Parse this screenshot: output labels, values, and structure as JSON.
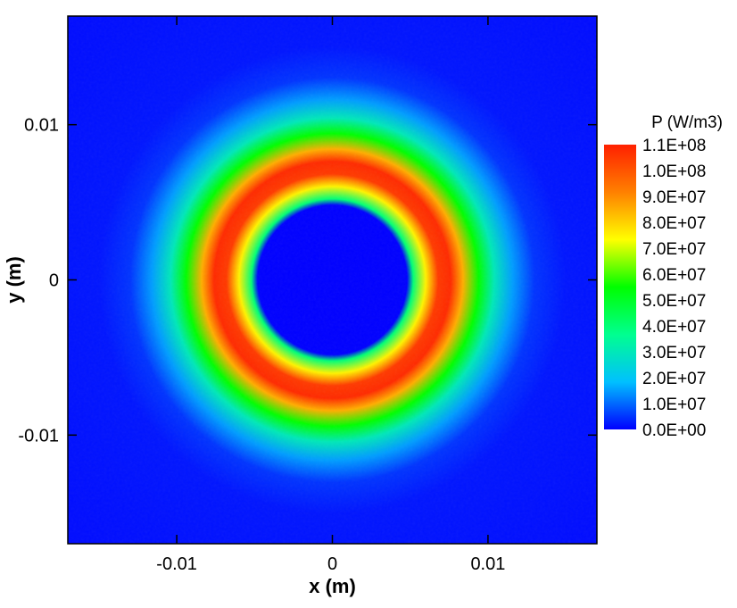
{
  "chart_data": {
    "type": "heatmap",
    "title": "",
    "xlabel": "x (m)",
    "ylabel": "y (m)",
    "xlim": [
      -0.017,
      0.017
    ],
    "ylim": [
      -0.017,
      0.017
    ],
    "x_ticks": [
      -0.01,
      0,
      0.01
    ],
    "x_tick_labels": [
      "-0.01",
      "0",
      "0.01"
    ],
    "y_ticks": [
      0.01,
      0,
      -0.01
    ],
    "y_tick_labels": [
      "0.01",
      "0",
      "-0.01"
    ],
    "grid": false,
    "colorbar": {
      "title": "P (W/m3)",
      "min": 0,
      "max": 110000000,
      "levels": [
        110000000,
        100000000,
        90000000,
        80000000,
        70000000,
        60000000,
        50000000,
        40000000,
        30000000,
        20000000,
        10000000,
        0
      ],
      "labels": [
        "1.1E+08",
        "1.0E+08",
        "9.0E+07",
        "8.0E+07",
        "7.0E+07",
        "6.0E+07",
        "5.0E+07",
        "4.0E+07",
        "3.0E+07",
        "2.0E+07",
        "1.0E+07",
        "0.0E+00"
      ],
      "colormap": [
        "#0000ff",
        "#00c0ff",
        "#00ff90",
        "#00ff00",
        "#ffff00",
        "#ff8000",
        "#ff2000"
      ]
    },
    "field": {
      "description_points": [
        {
          "r": 0.0,
          "P": 0
        },
        {
          "r": 0.0048,
          "P": 0
        },
        {
          "r": 0.0052,
          "P": 40000000
        },
        {
          "r": 0.006,
          "P": 75000000
        },
        {
          "r": 0.0068,
          "P": 105000000
        },
        {
          "r": 0.0076,
          "P": 108000000
        },
        {
          "r": 0.0084,
          "P": 85000000
        },
        {
          "r": 0.0094,
          "P": 55000000
        },
        {
          "r": 0.0104,
          "P": 30000000
        },
        {
          "r": 0.0116,
          "P": 15000000
        },
        {
          "r": 0.013,
          "P": 5000000
        },
        {
          "r": 0.015,
          "P": 2000000
        },
        {
          "r": 0.025,
          "P": 1000000
        }
      ]
    }
  }
}
